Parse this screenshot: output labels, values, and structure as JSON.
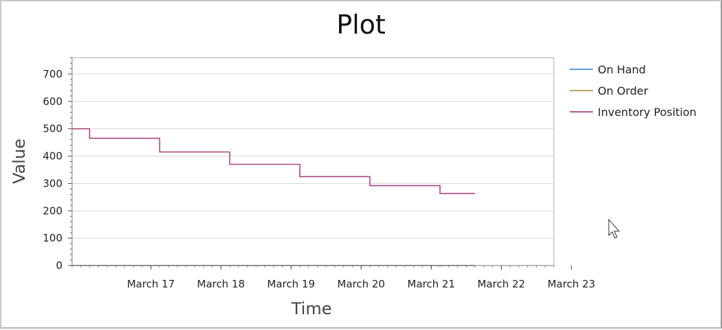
{
  "chart_data": {
    "type": "line",
    "title": "Plot",
    "xlabel": "Time",
    "ylabel": "Value",
    "ylim": [
      0,
      760
    ],
    "y_ticks": [
      "0",
      "100",
      "200",
      "300",
      "400",
      "500",
      "600",
      "700"
    ],
    "x_tick_labels": [
      "March 17",
      "March 18",
      "March 19",
      "March 20",
      "March 21",
      "March 22",
      "March 23"
    ],
    "x_range": [
      "2024-03-16 09:00",
      "2024-03-23 06:00"
    ],
    "step": true,
    "grid": "horizontal",
    "legend_position": "right",
    "series": [
      {
        "name": "On Hand",
        "color": "#3f8fd6",
        "points": [
          [
            "2024-03-16 09:00",
            0
          ],
          [
            "2024-03-22 03:00",
            0
          ]
        ]
      },
      {
        "name": "On Order",
        "color": "#b19a42",
        "points": [
          [
            "2024-03-16 09:00",
            0
          ],
          [
            "2024-03-22 03:00",
            0
          ]
        ]
      },
      {
        "name": "Inventory Position",
        "color": "#a8447d",
        "points": [
          [
            "2024-03-16 09:00",
            500
          ],
          [
            "2024-03-16 15:00",
            465
          ],
          [
            "2024-03-17 15:00",
            415
          ],
          [
            "2024-03-18 15:00",
            370
          ],
          [
            "2024-03-19 15:00",
            325
          ],
          [
            "2024-03-20 15:00",
            292
          ],
          [
            "2024-03-21 15:00",
            263
          ],
          [
            "2024-03-22 03:00",
            263
          ]
        ]
      }
    ]
  }
}
